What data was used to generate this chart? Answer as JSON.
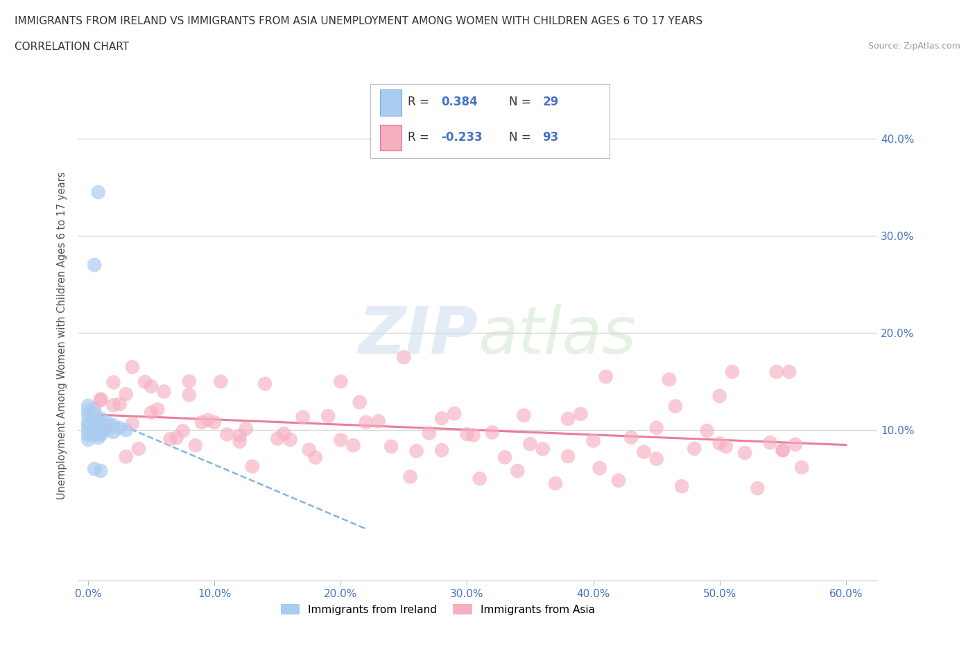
{
  "title_line1": "IMMIGRANTS FROM IRELAND VS IMMIGRANTS FROM ASIA UNEMPLOYMENT AMONG WOMEN WITH CHILDREN AGES 6 TO 17 YEARS",
  "title_line2": "CORRELATION CHART",
  "source": "Source: ZipAtlas.com",
  "ylabel": "Unemployment Among Women with Children Ages 6 to 17 years",
  "ytick_labels": [
    "10.0%",
    "20.0%",
    "30.0%",
    "40.0%"
  ],
  "xtick_labels": [
    "0.0%",
    "10.0%",
    "20.0%",
    "30.0%",
    "40.0%",
    "50.0%",
    "60.0%"
  ],
  "ireland_color": "#aaccf0",
  "ireland_color_dark": "#7aaad8",
  "asia_color": "#f5b0c0",
  "asia_color_dark": "#e87090",
  "ireland_R": 0.384,
  "ireland_N": 29,
  "asia_R": -0.233,
  "asia_N": 93,
  "watermark_zip": "ZIP",
  "watermark_atlas": "atlas",
  "background_color": "#ffffff",
  "grid_color": "#d8d8d8",
  "tick_color": "#4472c4",
  "title_color": "#333333",
  "source_color": "#999999"
}
